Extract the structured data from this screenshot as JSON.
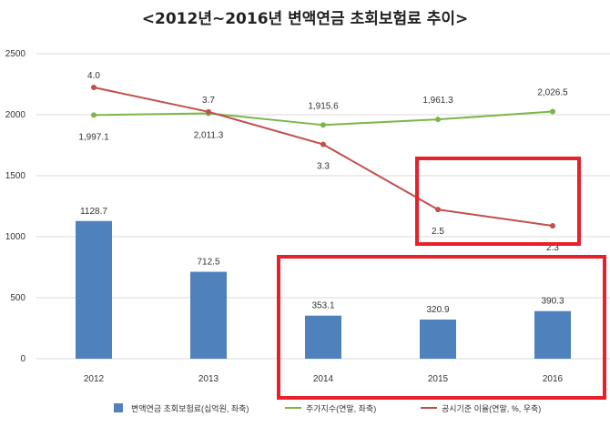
{
  "chart_data": {
    "type": "bar",
    "title": "<2012년~2016년 변액연금 초회보험료 추이>",
    "categories": [
      "2012",
      "2013",
      "2014",
      "2015",
      "2016"
    ],
    "ylim": [
      0,
      2500
    ],
    "yticks": [
      "0",
      "500",
      "1000",
      "1500",
      "2000",
      "2500"
    ],
    "grid": true,
    "legend_position": "bottom",
    "series": [
      {
        "name": "변액연금 초회보험료(십억원, 좌축)",
        "type": "bar",
        "values": [
          1128.7,
          712.5,
          353.1,
          320.9,
          390.3
        ],
        "labels": [
          "1128.7",
          "712.5",
          "353.1",
          "320.9",
          "390.3"
        ],
        "color": "#4f81bd"
      },
      {
        "name": "주가지수(연말, 좌축)",
        "type": "line",
        "values": [
          1997.1,
          2011.3,
          1915.6,
          1961.3,
          2026.5
        ],
        "labels": [
          "1,997.1",
          "2,011.3",
          "1,915.6",
          "1,961.3",
          "2,026.5"
        ],
        "color": "#7ab648"
      },
      {
        "name": "공시기준 이율(연말, %, 우축)",
        "type": "line",
        "axis": "right",
        "values": [
          4.0,
          3.7,
          3.3,
          2.5,
          2.3
        ],
        "labels": [
          "4.0",
          "3.7",
          "3.3",
          "2.5",
          "2.3"
        ],
        "color": "#c0504d"
      }
    ],
    "annotations": [
      {
        "type": "highlight-box",
        "color": "#e8202a",
        "covers": "공시기준 이율 2015–2016"
      },
      {
        "type": "highlight-box",
        "color": "#e8202a",
        "covers": "2014–2016"
      }
    ]
  }
}
